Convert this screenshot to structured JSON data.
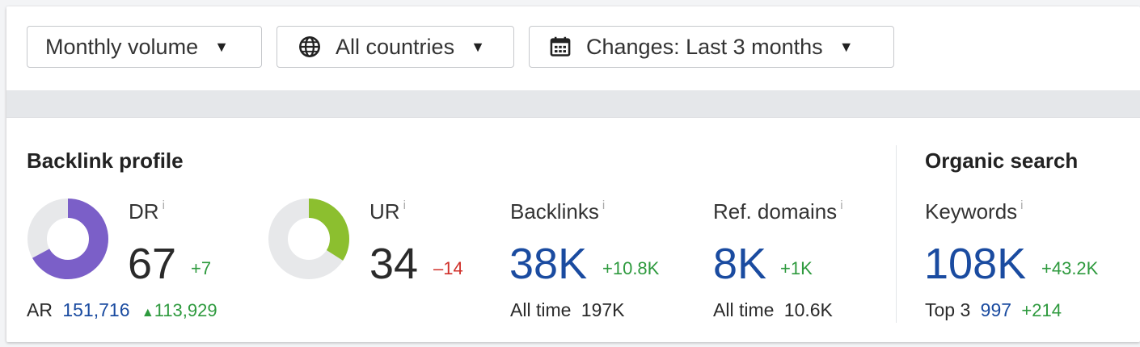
{
  "toolbar": {
    "volume": {
      "label": "Monthly volume"
    },
    "countries": {
      "label": "All countries",
      "icon": "globe-icon"
    },
    "changes": {
      "label": "Changes: Last 3 months",
      "icon": "calendar-icon"
    },
    "caret": "▼"
  },
  "backlink_profile": {
    "title": "Backlink profile",
    "dr": {
      "label": "DR",
      "info": "i",
      "value": "67",
      "delta": "+7",
      "gauge_fraction": 0.67,
      "color": "#7b5fc8"
    },
    "ar": {
      "label": "AR",
      "value": "151,716",
      "delta_arrow": "▲",
      "delta": "113,929"
    },
    "ur": {
      "label": "UR",
      "info": "i",
      "value": "34",
      "delta": "–14",
      "gauge_fraction": 0.34,
      "color": "#8cbf2f"
    },
    "backlinks": {
      "label": "Backlinks",
      "info": "i",
      "value": "38K",
      "delta": "+10.8K",
      "all_time_label": "All time",
      "all_time_value": "197K"
    },
    "ref_domains": {
      "label": "Ref. domains",
      "info": "i",
      "value": "8K",
      "delta": "+1K",
      "all_time_label": "All time",
      "all_time_value": "10.6K"
    }
  },
  "organic_search": {
    "title": "Organic search",
    "keywords": {
      "label": "Keywords",
      "info": "i",
      "value": "108K",
      "delta": "+43.2K",
      "top_label": "Top 3",
      "top_value": "997",
      "top_delta": "+214"
    }
  },
  "colors": {
    "track": "#e7e8ea",
    "blue": "#1a4ba0",
    "green": "#2e9a3e",
    "red": "#d0302a"
  }
}
